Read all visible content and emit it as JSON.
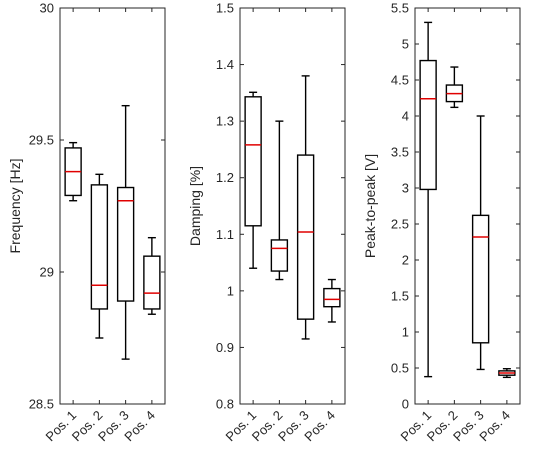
{
  "chart_data": [
    {
      "type": "box",
      "ylabel": "Frequency [Hz]",
      "ylim": [
        28.5,
        30
      ],
      "yticks": [
        "28.5",
        "29",
        "29.5",
        "30"
      ],
      "categories": [
        "Pos. 1",
        "Pos. 2",
        "Pos. 3",
        "Pos. 4"
      ],
      "boxes": [
        {
          "min": 29.27,
          "q1": 29.29,
          "median": 29.38,
          "q3": 29.47,
          "max": 29.49
        },
        {
          "min": 28.75,
          "q1": 28.86,
          "median": 28.95,
          "q3": 29.33,
          "max": 29.37
        },
        {
          "min": 28.67,
          "q1": 28.89,
          "median": 29.27,
          "q3": 29.32,
          "max": 29.63
        },
        {
          "min": 28.84,
          "q1": 28.86,
          "median": 28.92,
          "q3": 29.06,
          "max": 29.13
        }
      ]
    },
    {
      "type": "box",
      "ylabel": "Damping [%]",
      "ylim": [
        0.8,
        1.5
      ],
      "yticks": [
        "0.8",
        "0.9",
        "1",
        "1.1",
        "1.2",
        "1.3",
        "1.4",
        "1.5"
      ],
      "categories": [
        "Pos. 1",
        "Pos. 2",
        "Pos. 3",
        "Pos. 4"
      ],
      "boxes": [
        {
          "min": 1.04,
          "q1": 1.115,
          "median": 1.258,
          "q3": 1.343,
          "max": 1.351
        },
        {
          "min": 1.02,
          "q1": 1.035,
          "median": 1.075,
          "q3": 1.09,
          "max": 1.3
        },
        {
          "min": 0.915,
          "q1": 0.95,
          "median": 1.104,
          "q3": 1.24,
          "max": 1.38
        },
        {
          "min": 0.945,
          "q1": 0.972,
          "median": 0.985,
          "q3": 1.004,
          "max": 1.02
        }
      ]
    },
    {
      "type": "box",
      "ylabel": "Peak-to-peak [V]",
      "ylim": [
        0,
        5.5
      ],
      "yticks": [
        "0",
        "0.5",
        "1",
        "1.5",
        "2",
        "2.5",
        "3",
        "3.5",
        "4",
        "4.5",
        "5",
        "5.5"
      ],
      "categories": [
        "Pos. 1",
        "Pos. 2",
        "Pos. 3",
        "Pos. 4"
      ],
      "boxes": [
        {
          "min": 0.38,
          "q1": 2.98,
          "median": 4.24,
          "q3": 4.77,
          "max": 5.3
        },
        {
          "min": 4.12,
          "q1": 4.2,
          "median": 4.31,
          "q3": 4.43,
          "max": 4.68
        },
        {
          "min": 0.48,
          "q1": 0.85,
          "median": 2.32,
          "q3": 2.62,
          "max": 4.0
        },
        {
          "min": 0.37,
          "q1": 0.4,
          "median": 0.43,
          "q3": 0.46,
          "max": 0.49
        }
      ]
    }
  ],
  "colors": {
    "frame": "#262626",
    "box": "#000000",
    "median": "#e00000",
    "background": "#ffffff"
  }
}
